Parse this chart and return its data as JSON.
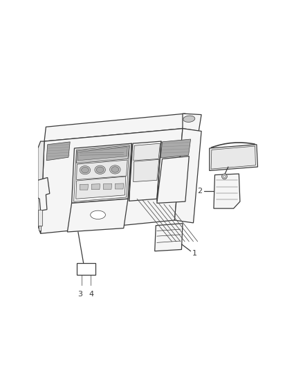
{
  "bg": "#ffffff",
  "lc": "#3a3a3a",
  "lc_light": "#888888",
  "fill_white": "#ffffff",
  "fill_light": "#f5f5f5",
  "fill_mid": "#e8e8e8",
  "fill_dark": "#c8c8c8",
  "fill_darker": "#aaaaaa",
  "fill_darkest": "#888888",
  "fig_w": 4.38,
  "fig_h": 5.33,
  "dpi": 100,
  "lw": 0.9,
  "lw_thin": 0.5
}
